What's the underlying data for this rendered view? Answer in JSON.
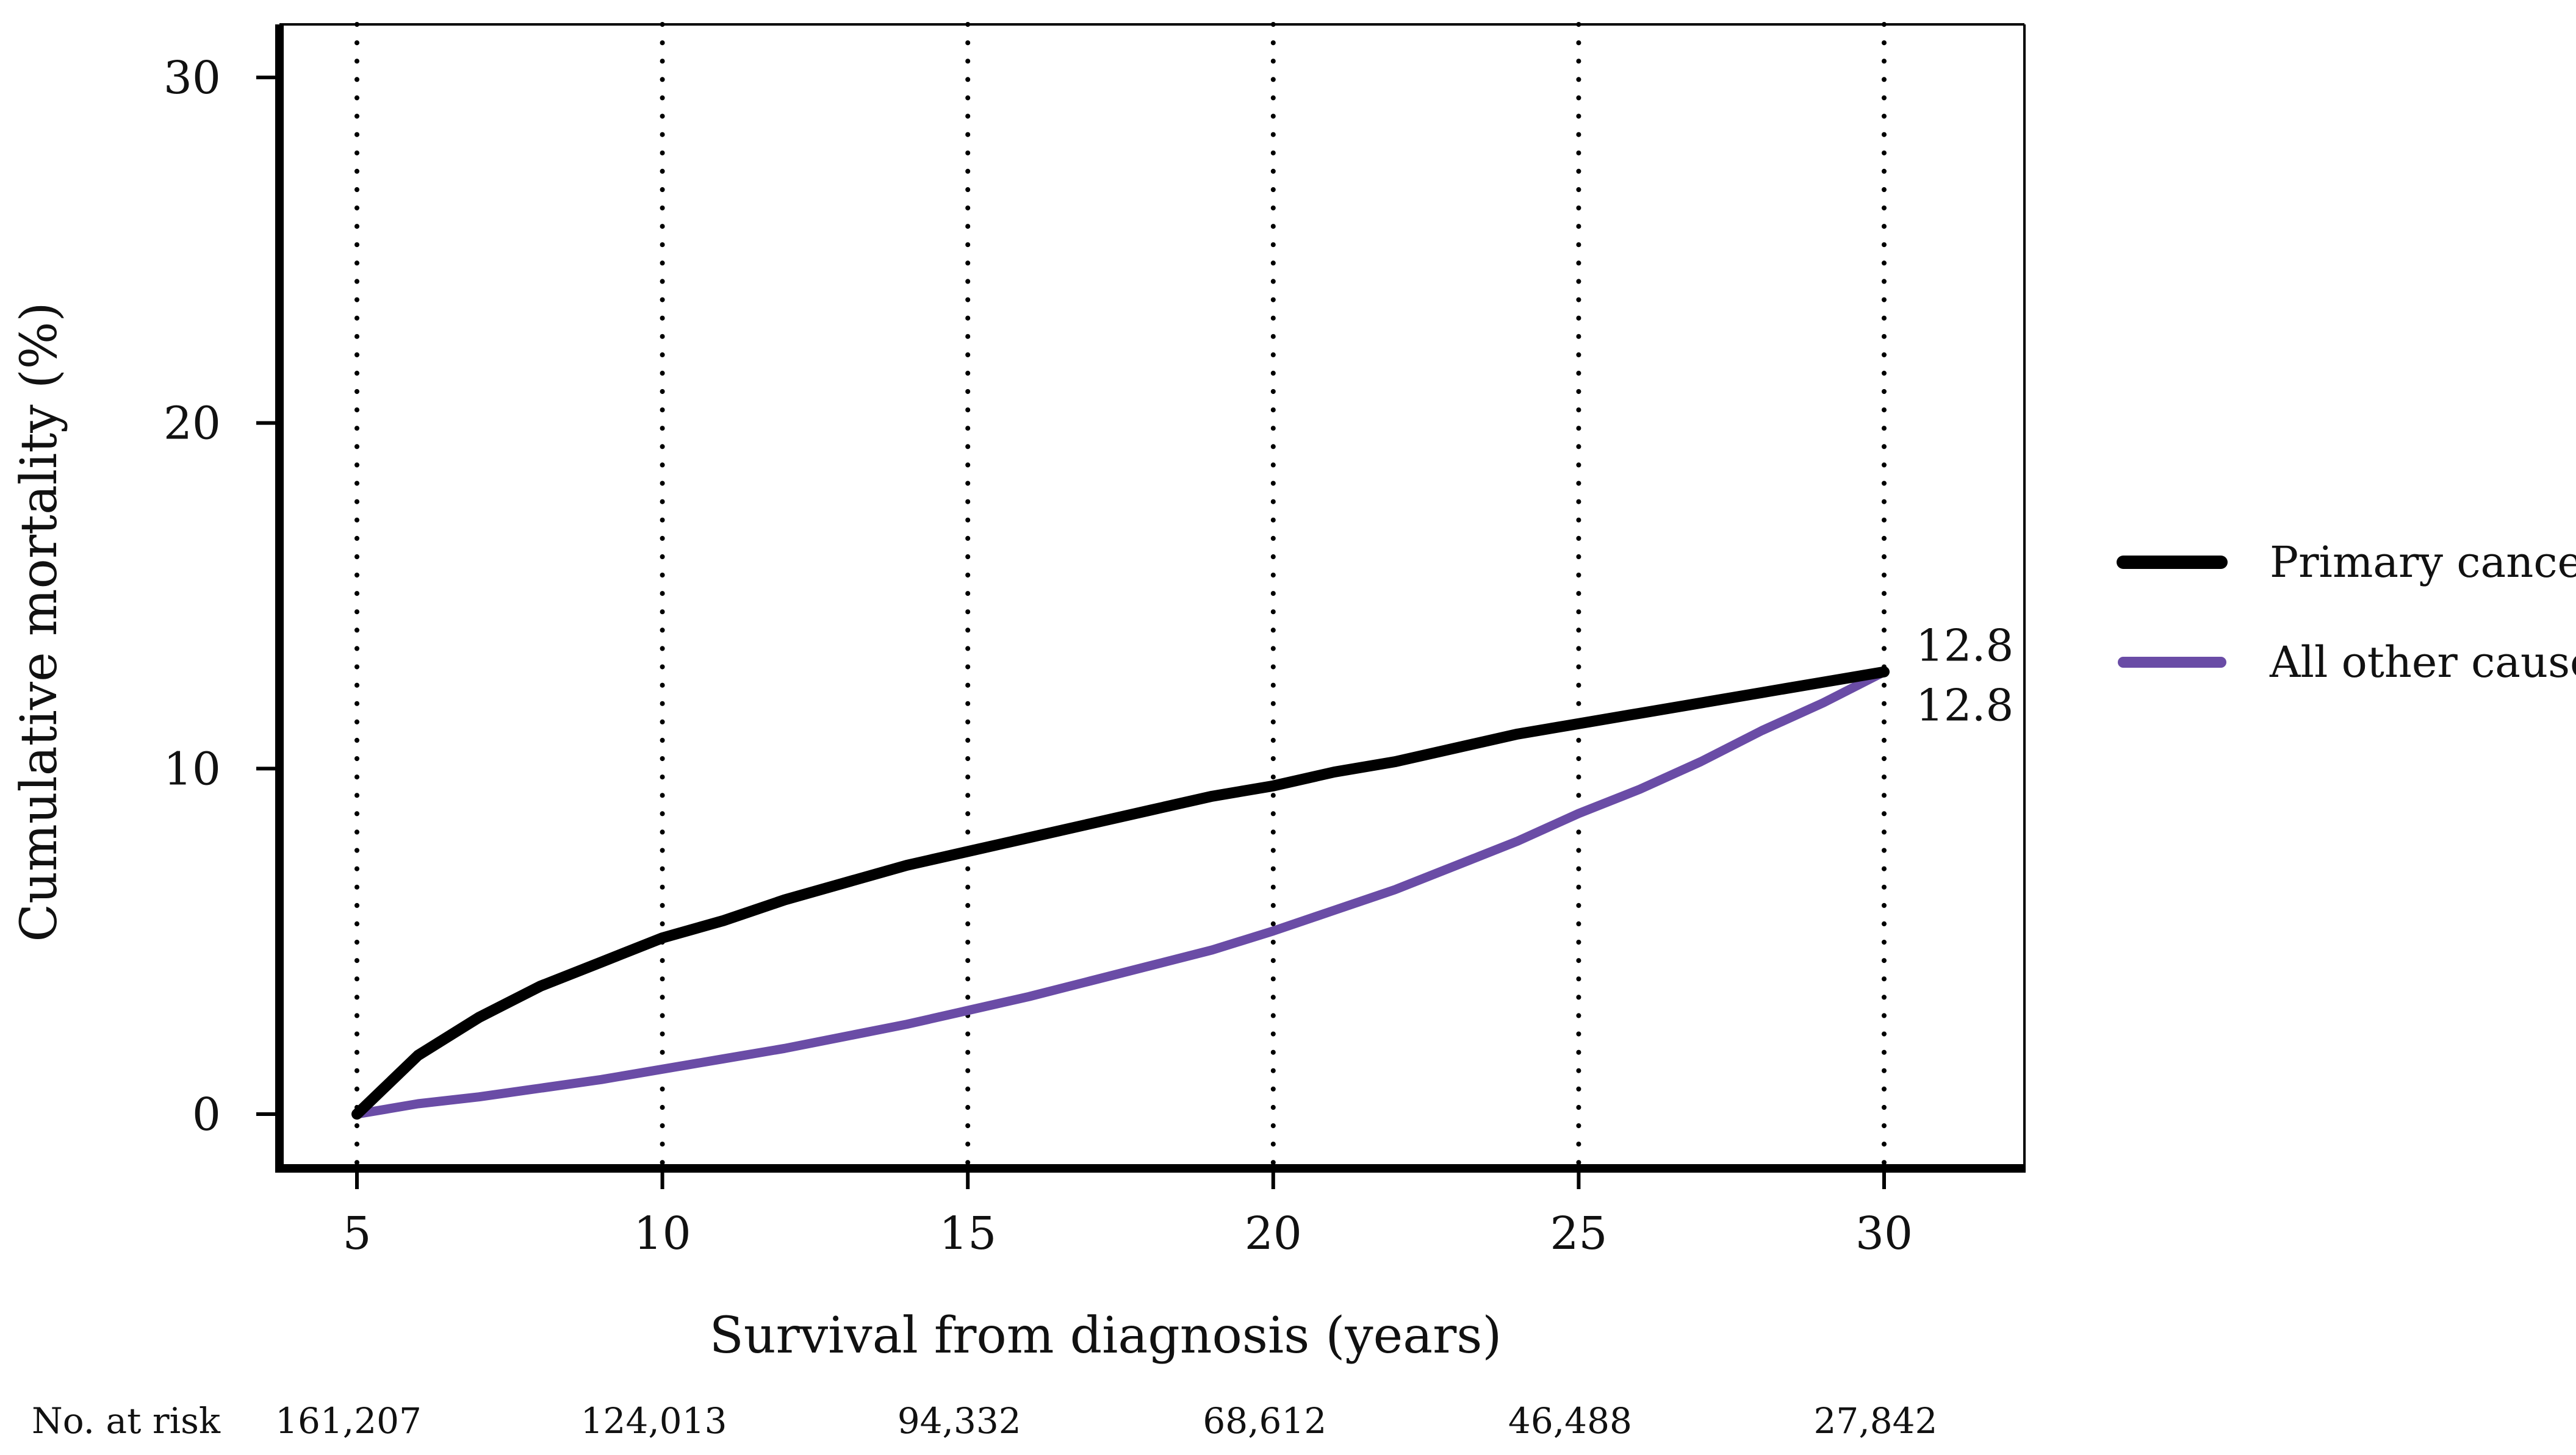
{
  "chart_data": {
    "type": "line",
    "xlabel": "Survival from diagnosis (years)",
    "ylabel": "Cumulative mortality (%)",
    "xlim": [
      5,
      30
    ],
    "ylim": [
      0,
      30
    ],
    "x_ticks": [
      5,
      10,
      15,
      20,
      25,
      30
    ],
    "x_tick_labels": [
      "5",
      "10",
      "15",
      "20",
      "25",
      "30"
    ],
    "y_ticks": [
      0,
      10,
      20,
      30
    ],
    "y_tick_labels": [
      "0",
      "10",
      "20",
      "30"
    ],
    "vertical_grid": "dotted at each x tick",
    "legend_position": "right",
    "series": [
      {
        "name": "Primary cancer",
        "color": "#000000",
        "x": [
          5,
          6,
          7,
          8,
          9,
          10,
          11,
          12,
          13,
          14,
          15,
          16,
          17,
          18,
          19,
          20,
          21,
          22,
          23,
          24,
          25,
          26,
          27,
          28,
          29,
          30
        ],
        "y": [
          0,
          1.7,
          2.8,
          3.7,
          4.4,
          5.1,
          5.6,
          6.2,
          6.7,
          7.2,
          7.6,
          8.0,
          8.4,
          8.8,
          9.2,
          9.5,
          9.9,
          10.2,
          10.6,
          11.0,
          11.3,
          11.6,
          11.9,
          12.2,
          12.5,
          12.8
        ]
      },
      {
        "name": "All other causes",
        "color": "#6a4ca6",
        "x": [
          5,
          6,
          7,
          8,
          9,
          10,
          11,
          12,
          13,
          14,
          15,
          16,
          17,
          18,
          19,
          20,
          21,
          22,
          23,
          24,
          25,
          26,
          27,
          28,
          29,
          30
        ],
        "y": [
          0,
          0.3,
          0.5,
          0.75,
          1.0,
          1.3,
          1.6,
          1.9,
          2.25,
          2.6,
          3.0,
          3.4,
          3.85,
          4.3,
          4.75,
          5.3,
          5.9,
          6.5,
          7.2,
          7.9,
          8.7,
          9.4,
          10.2,
          11.1,
          11.9,
          12.8
        ]
      }
    ],
    "end_labels": [
      {
        "series": "Primary cancer",
        "text": "12.8"
      },
      {
        "series": "All other causes",
        "text": "12.8"
      }
    ],
    "risk_table": {
      "label": "No. at risk",
      "x": [
        5,
        10,
        15,
        20,
        25,
        30
      ],
      "values": [
        "161,207",
        "124,013",
        "94,332",
        "68,612",
        "46,488",
        "27,842"
      ]
    }
  }
}
